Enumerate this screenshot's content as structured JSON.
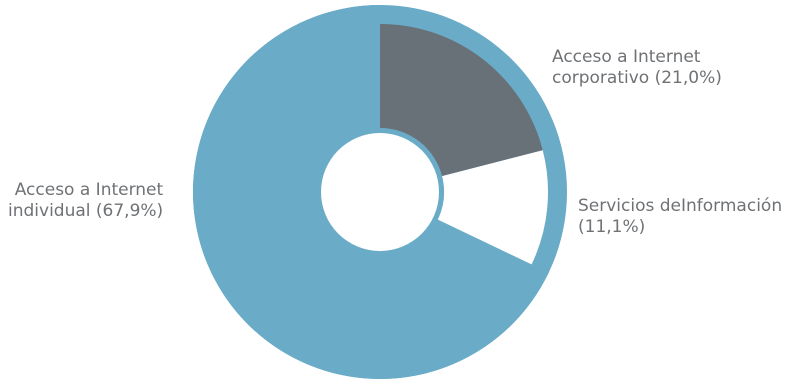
{
  "chart_data": {
    "type": "pie",
    "variant": "donut",
    "legend": "none",
    "slices": [
      {
        "label": "Acceso a Internet\ncorporativo (21,0%)",
        "value": 21.0,
        "color": "#687078"
      },
      {
        "label": "Servicios deInformación\n(11,1%)",
        "value": 11.1,
        "color": "#ffffff"
      },
      {
        "label": "Acceso a Internet\nindividual (67,9%)",
        "value": 67.9,
        "color": "#6aabc7"
      }
    ],
    "ring_color": "#6aabc7",
    "hole_color": "#ffffff"
  }
}
